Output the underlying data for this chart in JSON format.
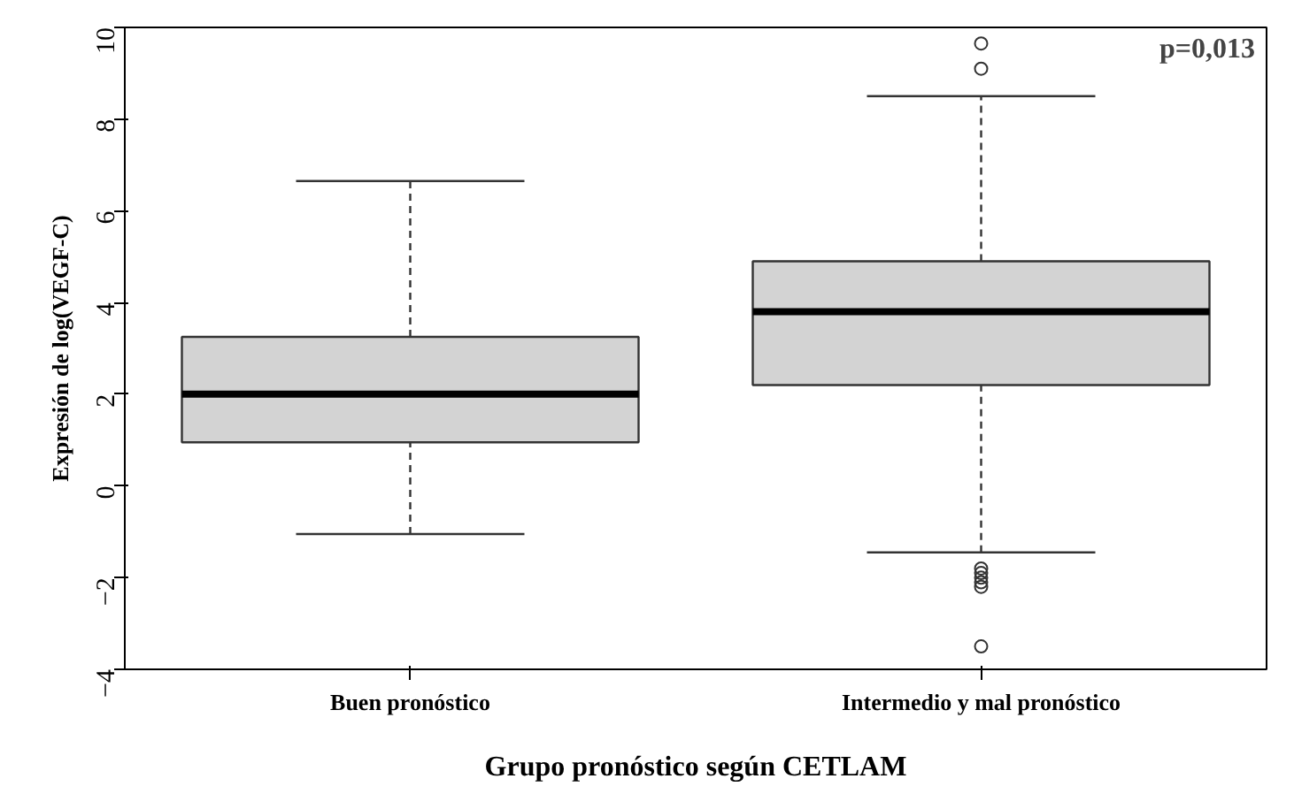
{
  "chart_data": {
    "type": "box",
    "categories": [
      "Buen pronóstico",
      "Intermedio y mal pronóstico"
    ],
    "xlabel": "Grupo pronóstico según CETLAM",
    "ylabel": "Expresión de log(VEGF-C)",
    "annotations": [
      "p=0,013"
    ],
    "ylim": [
      -4,
      10
    ],
    "yticks": [
      -4,
      -2,
      0,
      2,
      4,
      6,
      8,
      10
    ],
    "grid": false,
    "series": [
      {
        "color": "#d3d3d3",
        "boxes": [
          {
            "low": -1.05,
            "q1": 0.95,
            "median": 2.0,
            "q3": 3.25,
            "high": 6.65
          },
          {
            "low": -1.45,
            "q1": 2.2,
            "median": 3.8,
            "q3": 4.9,
            "high": 8.5,
            "outliers": [
              9.65,
              9.1,
              -1.8,
              -1.9,
              -2.0,
              -2.1,
              -2.2,
              -3.5
            ]
          }
        ]
      }
    ]
  }
}
